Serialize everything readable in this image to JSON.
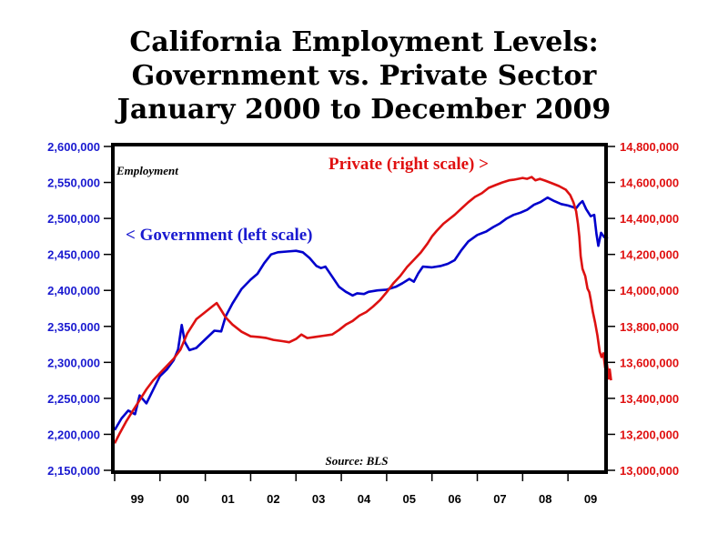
{
  "chart_data": {
    "type": "line",
    "title": [
      "California Employment Levels:",
      "Government vs. Private Sector",
      "January 2000 to December 2009"
    ],
    "ylabel": "Employment",
    "source": "Source: BLS",
    "x_tick_labels": [
      "99",
      "00",
      "01",
      "02",
      "03",
      "04",
      "05",
      "06",
      "07",
      "08",
      "09"
    ],
    "xlim": [
      1999.5,
      2010.3
    ],
    "left_axis": {
      "ylim": [
        2150000,
        2600000
      ],
      "ticks": [
        "2,150,000",
        "2,200,000",
        "2,250,000",
        "2,300,000",
        "2,350,000",
        "2,400,000",
        "2,450,000",
        "2,500,000",
        "2,550,000",
        "2,600,000"
      ]
    },
    "right_axis": {
      "ylim": [
        13000000,
        14800000
      ],
      "ticks": [
        "13,000,000",
        "13,200,000",
        "13,400,000",
        "13,600,000",
        "13,800,000",
        "14,000,000",
        "14,200,000",
        "14,400,000",
        "14,600,000",
        "14,800,000"
      ]
    },
    "series": [
      {
        "name": "< Government (left scale)",
        "axis": "left",
        "color": "#0000cc",
        "points": [
          [
            1999.5,
            2206000
          ],
          [
            1999.65,
            2222000
          ],
          [
            1999.8,
            2233000
          ],
          [
            1999.95,
            2228000
          ],
          [
            2000.05,
            2254000
          ],
          [
            2000.2,
            2243000
          ],
          [
            2000.35,
            2262000
          ],
          [
            2000.5,
            2281000
          ],
          [
            2000.65,
            2290000
          ],
          [
            2000.8,
            2303000
          ],
          [
            2000.9,
            2318000
          ],
          [
            2000.98,
            2352000
          ],
          [
            2001.05,
            2328000
          ],
          [
            2001.15,
            2317000
          ],
          [
            2001.3,
            2320000
          ],
          [
            2001.5,
            2332000
          ],
          [
            2001.7,
            2344000
          ],
          [
            2001.85,
            2343000
          ],
          [
            2001.95,
            2364000
          ],
          [
            2002.1,
            2382000
          ],
          [
            2002.3,
            2402000
          ],
          [
            2002.5,
            2415000
          ],
          [
            2002.65,
            2423000
          ],
          [
            2002.8,
            2438000
          ],
          [
            2002.95,
            2450000
          ],
          [
            2003.1,
            2453000
          ],
          [
            2003.3,
            2454000
          ],
          [
            2003.5,
            2455000
          ],
          [
            2003.65,
            2453000
          ],
          [
            2003.8,
            2445000
          ],
          [
            2003.95,
            2434000
          ],
          [
            2004.05,
            2431000
          ],
          [
            2004.15,
            2433000
          ],
          [
            2004.3,
            2419000
          ],
          [
            2004.45,
            2405000
          ],
          [
            2004.6,
            2398000
          ],
          [
            2004.75,
            2393000
          ],
          [
            2004.85,
            2396000
          ],
          [
            2005.0,
            2395000
          ],
          [
            2005.1,
            2398000
          ],
          [
            2005.3,
            2400000
          ],
          [
            2005.5,
            2401000
          ],
          [
            2005.7,
            2405000
          ],
          [
            2005.85,
            2410000
          ],
          [
            2006.0,
            2416000
          ],
          [
            2006.1,
            2412000
          ],
          [
            2006.2,
            2424000
          ],
          [
            2006.3,
            2433000
          ],
          [
            2006.5,
            2432000
          ],
          [
            2006.7,
            2434000
          ],
          [
            2006.85,
            2437000
          ],
          [
            2007.0,
            2442000
          ],
          [
            2007.15,
            2456000
          ],
          [
            2007.3,
            2468000
          ],
          [
            2007.5,
            2477000
          ],
          [
            2007.7,
            2482000
          ],
          [
            2007.85,
            2488000
          ],
          [
            2008.0,
            2493000
          ],
          [
            2008.15,
            2500000
          ],
          [
            2008.3,
            2505000
          ],
          [
            2008.45,
            2508000
          ],
          [
            2008.6,
            2512000
          ],
          [
            2008.75,
            2519000
          ],
          [
            2008.9,
            2523000
          ],
          [
            2009.05,
            2529000
          ],
          [
            2009.2,
            2524000
          ],
          [
            2009.35,
            2520000
          ],
          [
            2009.5,
            2518000
          ],
          [
            2009.6,
            2516000
          ],
          [
            2009.68,
            2514000
          ],
          [
            2009.75,
            2520000
          ],
          [
            2009.82,
            2524000
          ],
          [
            2009.9,
            2513000
          ],
          [
            2010.0,
            2503000
          ],
          [
            2010.08,
            2505000
          ],
          [
            2010.13,
            2478000
          ],
          [
            2010.17,
            2462000
          ],
          [
            2010.23,
            2480000
          ],
          [
            2010.3,
            2474000
          ],
          [
            2010.38,
            2472000
          ]
        ]
      },
      {
        "name": "Private (right scale) >",
        "axis": "right",
        "color": "#dd1111",
        "points": [
          [
            1999.5,
            13150000
          ],
          [
            1999.6,
            13200000
          ],
          [
            1999.75,
            13270000
          ],
          [
            1999.9,
            13330000
          ],
          [
            2000.05,
            13390000
          ],
          [
            2000.2,
            13450000
          ],
          [
            2000.35,
            13500000
          ],
          [
            2000.5,
            13540000
          ],
          [
            2000.65,
            13580000
          ],
          [
            2000.8,
            13620000
          ],
          [
            2000.95,
            13670000
          ],
          [
            2001.1,
            13760000
          ],
          [
            2001.3,
            13840000
          ],
          [
            2001.5,
            13880000
          ],
          [
            2001.65,
            13910000
          ],
          [
            2001.75,
            13930000
          ],
          [
            2001.85,
            13890000
          ],
          [
            2001.95,
            13850000
          ],
          [
            2002.1,
            13810000
          ],
          [
            2002.3,
            13770000
          ],
          [
            2002.5,
            13745000
          ],
          [
            2002.7,
            13740000
          ],
          [
            2002.85,
            13735000
          ],
          [
            2003.0,
            13725000
          ],
          [
            2003.2,
            13718000
          ],
          [
            2003.35,
            13712000
          ],
          [
            2003.5,
            13730000
          ],
          [
            2003.62,
            13755000
          ],
          [
            2003.75,
            13735000
          ],
          [
            2003.95,
            13742000
          ],
          [
            2004.1,
            13748000
          ],
          [
            2004.3,
            13755000
          ],
          [
            2004.45,
            13780000
          ],
          [
            2004.6,
            13810000
          ],
          [
            2004.75,
            13830000
          ],
          [
            2004.9,
            13860000
          ],
          [
            2005.05,
            13880000
          ],
          [
            2005.2,
            13910000
          ],
          [
            2005.35,
            13945000
          ],
          [
            2005.5,
            13990000
          ],
          [
            2005.65,
            14040000
          ],
          [
            2005.8,
            14080000
          ],
          [
            2005.95,
            14130000
          ],
          [
            2006.1,
            14170000
          ],
          [
            2006.25,
            14210000
          ],
          [
            2006.4,
            14260000
          ],
          [
            2006.5,
            14300000
          ],
          [
            2006.6,
            14330000
          ],
          [
            2006.75,
            14370000
          ],
          [
            2006.9,
            14400000
          ],
          [
            2007.0,
            14420000
          ],
          [
            2007.15,
            14455000
          ],
          [
            2007.3,
            14490000
          ],
          [
            2007.45,
            14520000
          ],
          [
            2007.6,
            14540000
          ],
          [
            2007.75,
            14570000
          ],
          [
            2007.9,
            14585000
          ],
          [
            2008.05,
            14600000
          ],
          [
            2008.2,
            14612000
          ],
          [
            2008.3,
            14615000
          ],
          [
            2008.4,
            14620000
          ],
          [
            2008.5,
            14625000
          ],
          [
            2008.6,
            14620000
          ],
          [
            2008.7,
            14630000
          ],
          [
            2008.78,
            14612000
          ],
          [
            2008.88,
            14620000
          ],
          [
            2009.0,
            14610000
          ],
          [
            2009.15,
            14595000
          ],
          [
            2009.3,
            14580000
          ],
          [
            2009.45,
            14560000
          ],
          [
            2009.55,
            14530000
          ],
          [
            2009.62,
            14490000
          ],
          [
            2009.68,
            14440000
          ],
          [
            2009.72,
            14370000
          ],
          [
            2009.75,
            14300000
          ],
          [
            2009.78,
            14190000
          ],
          [
            2009.82,
            14120000
          ],
          [
            2009.88,
            14080000
          ],
          [
            2009.93,
            14010000
          ],
          [
            2009.97,
            13990000
          ],
          [
            2010.0,
            13950000
          ],
          [
            2010.05,
            13880000
          ],
          [
            2010.1,
            13820000
          ],
          [
            2010.15,
            13750000
          ],
          [
            2010.2,
            13660000
          ],
          [
            2010.24,
            13630000
          ],
          [
            2010.28,
            13650000
          ],
          [
            2010.32,
            13570000
          ],
          [
            2010.36,
            13590000
          ],
          [
            2010.4,
            13510000
          ],
          [
            2010.42,
            13560000
          ],
          [
            2010.45,
            13500000
          ]
        ]
      }
    ]
  }
}
